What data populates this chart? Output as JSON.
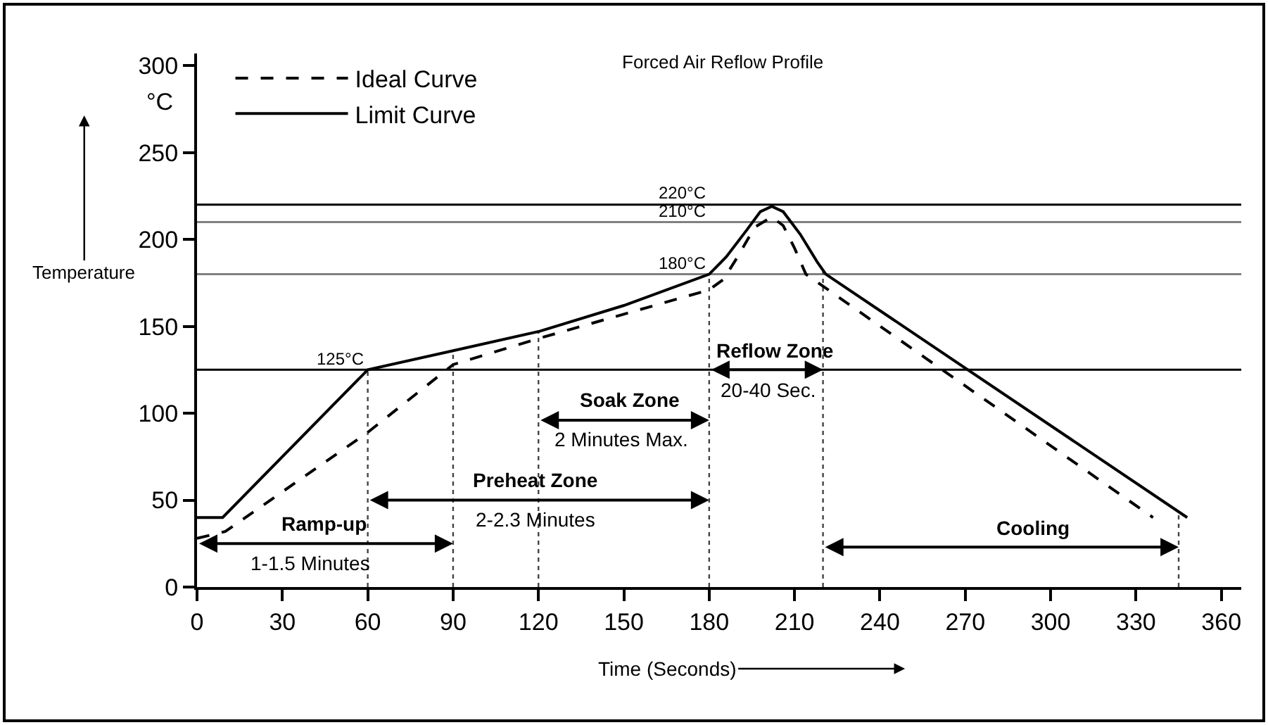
{
  "chart_data": {
    "type": "line",
    "title": "Forced Air Reflow Profile",
    "xlabel": "Time (Seconds)",
    "ylabel": "Temperature",
    "xlim": [
      0,
      367
    ],
    "ylim": [
      0,
      307
    ],
    "xticks": [
      0,
      30,
      60,
      90,
      120,
      150,
      180,
      210,
      240,
      270,
      300,
      330,
      360
    ],
    "yticks": [
      0,
      50,
      100,
      150,
      200,
      250,
      300
    ],
    "grid": false,
    "legend": "top left",
    "series": [
      {
        "name": "Ideal Curve",
        "color": "#000000",
        "line_style": "dashed",
        "x": [
          0,
          10,
          60,
          90,
          120,
          150,
          180,
          185,
          190,
          196,
          202,
          206,
          210,
          214,
          336
        ],
        "values": [
          28,
          32,
          89,
          128,
          143,
          157,
          171,
          177,
          190,
          207,
          213,
          208,
          195,
          180,
          40
        ]
      },
      {
        "name": "Limit Curve",
        "color": "#000000",
        "line_style": "solid",
        "x": [
          0,
          9,
          60,
          90,
          120,
          150,
          180,
          186,
          193,
          198,
          202,
          206,
          212,
          218,
          221,
          348
        ],
        "values": [
          40,
          40,
          125,
          136,
          147,
          162,
          180,
          190,
          205,
          216,
          219,
          216,
          203,
          187,
          180,
          40
        ]
      }
    ],
    "ref_lines": [
      {
        "axis": "y",
        "value": 220,
        "label": "220°C",
        "color": "#000000"
      },
      {
        "axis": "y",
        "value": 210,
        "label": "210°C",
        "color": "#808080"
      },
      {
        "axis": "y",
        "value": 180,
        "label": "180°C",
        "color": "#808080"
      },
      {
        "axis": "y",
        "value": 125,
        "label": "125°C",
        "color": "#000000"
      },
      {
        "axis": "x",
        "value": 60,
        "color": "#444444",
        "line_style": "dotted"
      },
      {
        "axis": "x",
        "value": 90,
        "color": "#444444",
        "line_style": "dotted"
      },
      {
        "axis": "x",
        "value": 120,
        "color": "#444444",
        "line_style": "dotted"
      },
      {
        "axis": "x",
        "value": 180,
        "color": "#444444",
        "line_style": "dotted"
      },
      {
        "axis": "x",
        "value": 220,
        "color": "#444444",
        "line_style": "dotted"
      },
      {
        "axis": "x",
        "value": 345,
        "color": "#444444",
        "line_style": "dotted"
      }
    ],
    "annotations": [
      "Ramp-up",
      "Preheat Zone",
      "Soak Zone",
      "Reflow Zone",
      "Cooling",
      "1-1.5 Minutes",
      "2-2.3 Minutes",
      "2 Minutes Max.",
      "20-40 Sec.",
      "°C"
    ]
  }
}
